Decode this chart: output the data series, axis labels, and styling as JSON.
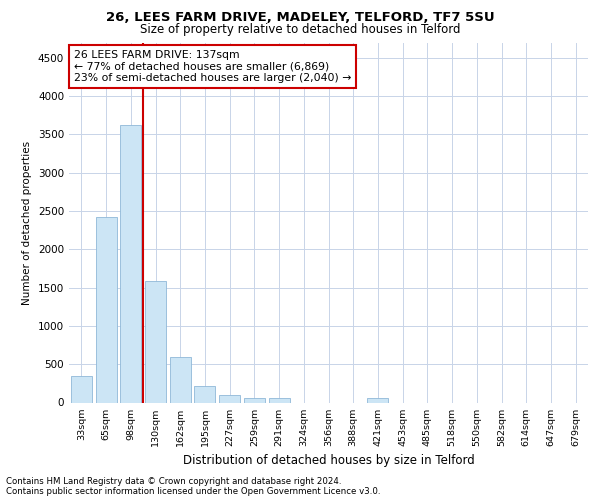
{
  "title1": "26, LEES FARM DRIVE, MADELEY, TELFORD, TF7 5SU",
  "title2": "Size of property relative to detached houses in Telford",
  "xlabel": "Distribution of detached houses by size in Telford",
  "ylabel": "Number of detached properties",
  "categories": [
    "33sqm",
    "65sqm",
    "98sqm",
    "130sqm",
    "162sqm",
    "195sqm",
    "227sqm",
    "259sqm",
    "291sqm",
    "324sqm",
    "356sqm",
    "388sqm",
    "421sqm",
    "453sqm",
    "485sqm",
    "518sqm",
    "550sqm",
    "582sqm",
    "614sqm",
    "647sqm",
    "679sqm"
  ],
  "values": [
    350,
    2420,
    3620,
    1580,
    600,
    220,
    100,
    60,
    55,
    0,
    0,
    0,
    55,
    0,
    0,
    0,
    0,
    0,
    0,
    0,
    0
  ],
  "bar_color": "#cce5f5",
  "bar_edge_color": "#90b8d8",
  "vline_color": "#cc0000",
  "vline_pos": 2.5,
  "annotation_text": "26 LEES FARM DRIVE: 137sqm\n← 77% of detached houses are smaller (6,869)\n23% of semi-detached houses are larger (2,040) →",
  "annotation_box_color": "#ffffff",
  "annotation_box_edge_color": "#cc0000",
  "ylim": [
    0,
    4700
  ],
  "yticks": [
    0,
    500,
    1000,
    1500,
    2000,
    2500,
    3000,
    3500,
    4000,
    4500
  ],
  "background_color": "#ffffff",
  "grid_color": "#c8d4e8",
  "footer1": "Contains HM Land Registry data © Crown copyright and database right 2024.",
  "footer2": "Contains public sector information licensed under the Open Government Licence v3.0."
}
